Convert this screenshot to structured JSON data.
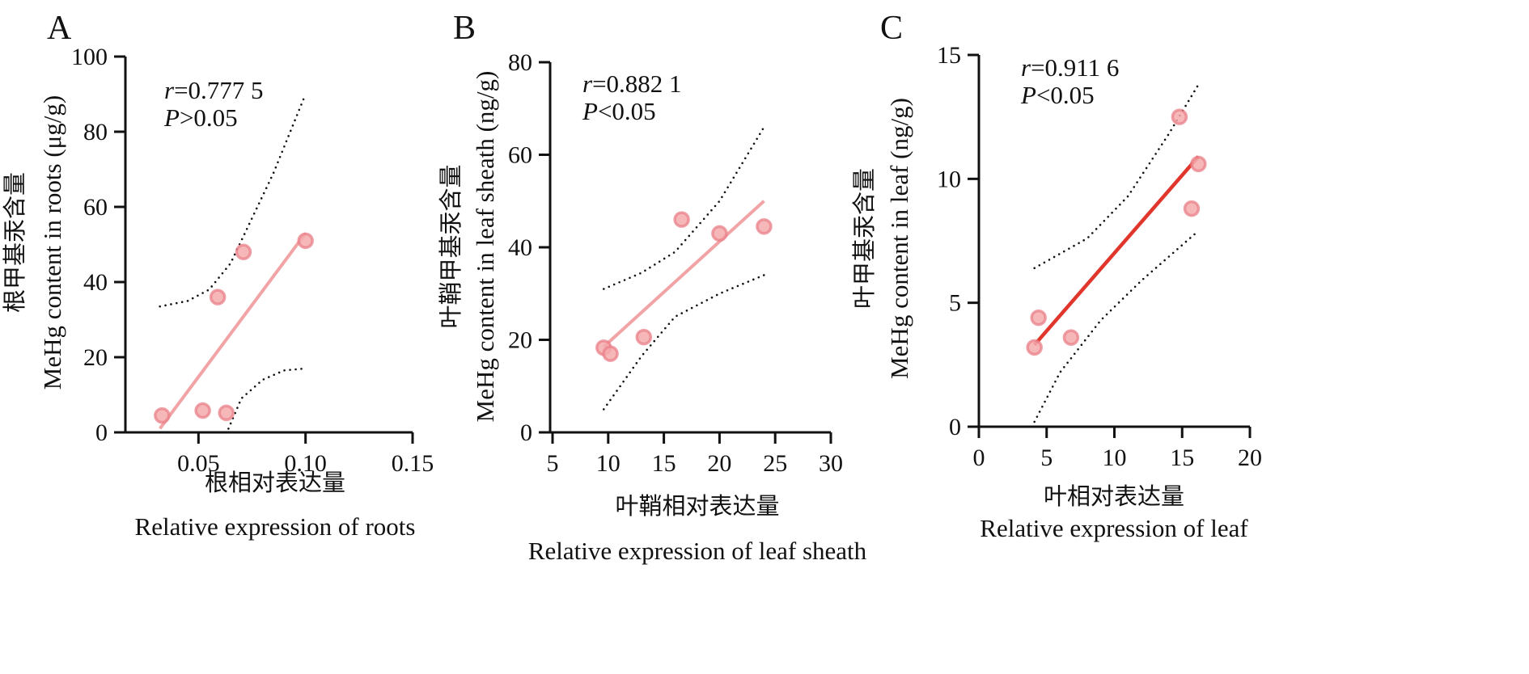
{
  "chart_data": [
    {
      "type": "scatter",
      "panel": "A",
      "ylabel_cn": "根甲基汞含量",
      "ylabel": "MeHg content in roots (μg/g)",
      "xlabel_cn": "根相对表达量",
      "xlabel": "Relative expression of roots",
      "xlim": [
        0.017,
        0.15
      ],
      "ylim": [
        0,
        100
      ],
      "xticks": [
        {
          "v": 0.05,
          "label": "0.05"
        },
        {
          "v": 0.1,
          "label": "0.10"
        },
        {
          "v": 0.15,
          "label": "0.15"
        }
      ],
      "yticks": [
        {
          "v": 0,
          "label": "0"
        },
        {
          "v": 20,
          "label": "20"
        },
        {
          "v": 40,
          "label": "40"
        },
        {
          "v": 60,
          "label": "60"
        },
        {
          "v": 80,
          "label": "80"
        },
        {
          "v": 100,
          "label": "100"
        }
      ],
      "annotation": {
        "r_sym": "r",
        "r_val": "=0.777 5",
        "p_sym": "P",
        "p_val": ">0.05"
      },
      "points": [
        [
          0.033,
          4.5
        ],
        [
          0.052,
          5.8
        ],
        [
          0.063,
          5.2
        ],
        [
          0.059,
          36
        ],
        [
          0.071,
          48
        ],
        [
          0.1,
          51
        ]
      ],
      "fit": [
        [
          0.032,
          1
        ],
        [
          0.1,
          53
        ]
      ],
      "ci_upper": [
        [
          0.032,
          33.5
        ],
        [
          0.045,
          35
        ],
        [
          0.055,
          38
        ],
        [
          0.065,
          45
        ],
        [
          0.075,
          57
        ],
        [
          0.085,
          69
        ],
        [
          0.1,
          90
        ]
      ],
      "ci_lower": [
        [
          0.064,
          1
        ],
        [
          0.07,
          9
        ],
        [
          0.08,
          14
        ],
        [
          0.09,
          16.5
        ],
        [
          0.1,
          17
        ]
      ],
      "line_color": "#f2a3a5"
    },
    {
      "type": "scatter",
      "panel": "B",
      "ylabel_cn": "叶鞘甲基汞含量",
      "ylabel": "MeHg content in leaf sheath (ng/g)",
      "xlabel_cn": "叶鞘相对表达量",
      "xlabel": "Relative expression of leaf sheath",
      "xlim": [
        5,
        30
      ],
      "ylim": [
        0,
        80
      ],
      "xticks": [
        {
          "v": 5,
          "label": "5"
        },
        {
          "v": 10,
          "label": "10"
        },
        {
          "v": 15,
          "label": "15"
        },
        {
          "v": 20,
          "label": "20"
        },
        {
          "v": 25,
          "label": "25"
        },
        {
          "v": 30,
          "label": "30"
        }
      ],
      "yticks": [
        {
          "v": 0,
          "label": "0"
        },
        {
          "v": 20,
          "label": "20"
        },
        {
          "v": 40,
          "label": "40"
        },
        {
          "v": 60,
          "label": "60"
        },
        {
          "v": 80,
          "label": "80"
        }
      ],
      "annotation": {
        "r_sym": "r",
        "r_val": "=0.882 1",
        "p_sym": "P",
        "p_val": "<0.05"
      },
      "points": [
        [
          9.6,
          18.3
        ],
        [
          10.2,
          17
        ],
        [
          13.2,
          20.6
        ],
        [
          16.6,
          46
        ],
        [
          20,
          43
        ],
        [
          24,
          44.5
        ]
      ],
      "fit": [
        [
          9.6,
          18.5
        ],
        [
          24,
          50
        ]
      ],
      "ci_upper": [
        [
          9.6,
          31
        ],
        [
          13,
          34.5
        ],
        [
          16,
          39
        ],
        [
          20,
          50
        ],
        [
          24,
          66
        ]
      ],
      "ci_lower": [
        [
          9.6,
          5
        ],
        [
          13,
          16.5
        ],
        [
          16,
          25
        ],
        [
          20,
          30
        ],
        [
          24,
          34
        ]
      ],
      "line_color": "#f2a3a5"
    },
    {
      "type": "scatter",
      "panel": "C",
      "ylabel_cn": "叶甲基汞含量",
      "ylabel": "MeHg content in leaf (ng/g)",
      "xlabel_cn": "叶相对表达量",
      "xlabel": "Relative expression of leaf",
      "xlim": [
        0,
        20
      ],
      "ylim": [
        0,
        15
      ],
      "xticks": [
        {
          "v": 0,
          "label": "0"
        },
        {
          "v": 5,
          "label": "5"
        },
        {
          "v": 10,
          "label": "10"
        },
        {
          "v": 15,
          "label": "15"
        },
        {
          "v": 20,
          "label": "20"
        }
      ],
      "yticks": [
        {
          "v": 0,
          "label": "0"
        },
        {
          "v": 5,
          "label": "5"
        },
        {
          "v": 10,
          "label": "10"
        },
        {
          "v": 15,
          "label": "15"
        }
      ],
      "annotation": {
        "r_sym": "r",
        "r_val": "=0.911 6",
        "p_sym": "P",
        "p_val": "<0.05"
      },
      "points": [
        [
          4.1,
          3.2
        ],
        [
          4.4,
          4.4
        ],
        [
          6.8,
          3.6
        ],
        [
          14.8,
          12.5
        ],
        [
          15.7,
          8.8
        ],
        [
          16.2,
          10.6
        ]
      ],
      "fit": [
        [
          4.1,
          3.3
        ],
        [
          16.2,
          10.9
        ]
      ],
      "ci_upper": [
        [
          4.1,
          6.4
        ],
        [
          8,
          7.6
        ],
        [
          11,
          9.3
        ],
        [
          14,
          11.8
        ],
        [
          16.2,
          13.8
        ]
      ],
      "ci_lower": [
        [
          4.1,
          0.2
        ],
        [
          6,
          2.2
        ],
        [
          9,
          4.3
        ],
        [
          12,
          5.9
        ],
        [
          16.2,
          7.9
        ]
      ],
      "line_color": "#e0362c"
    }
  ],
  "colors": {
    "point_fill": "#f4aaad",
    "point_stroke": "#e98089",
    "axis": "#111111",
    "ci": "#111111"
  }
}
